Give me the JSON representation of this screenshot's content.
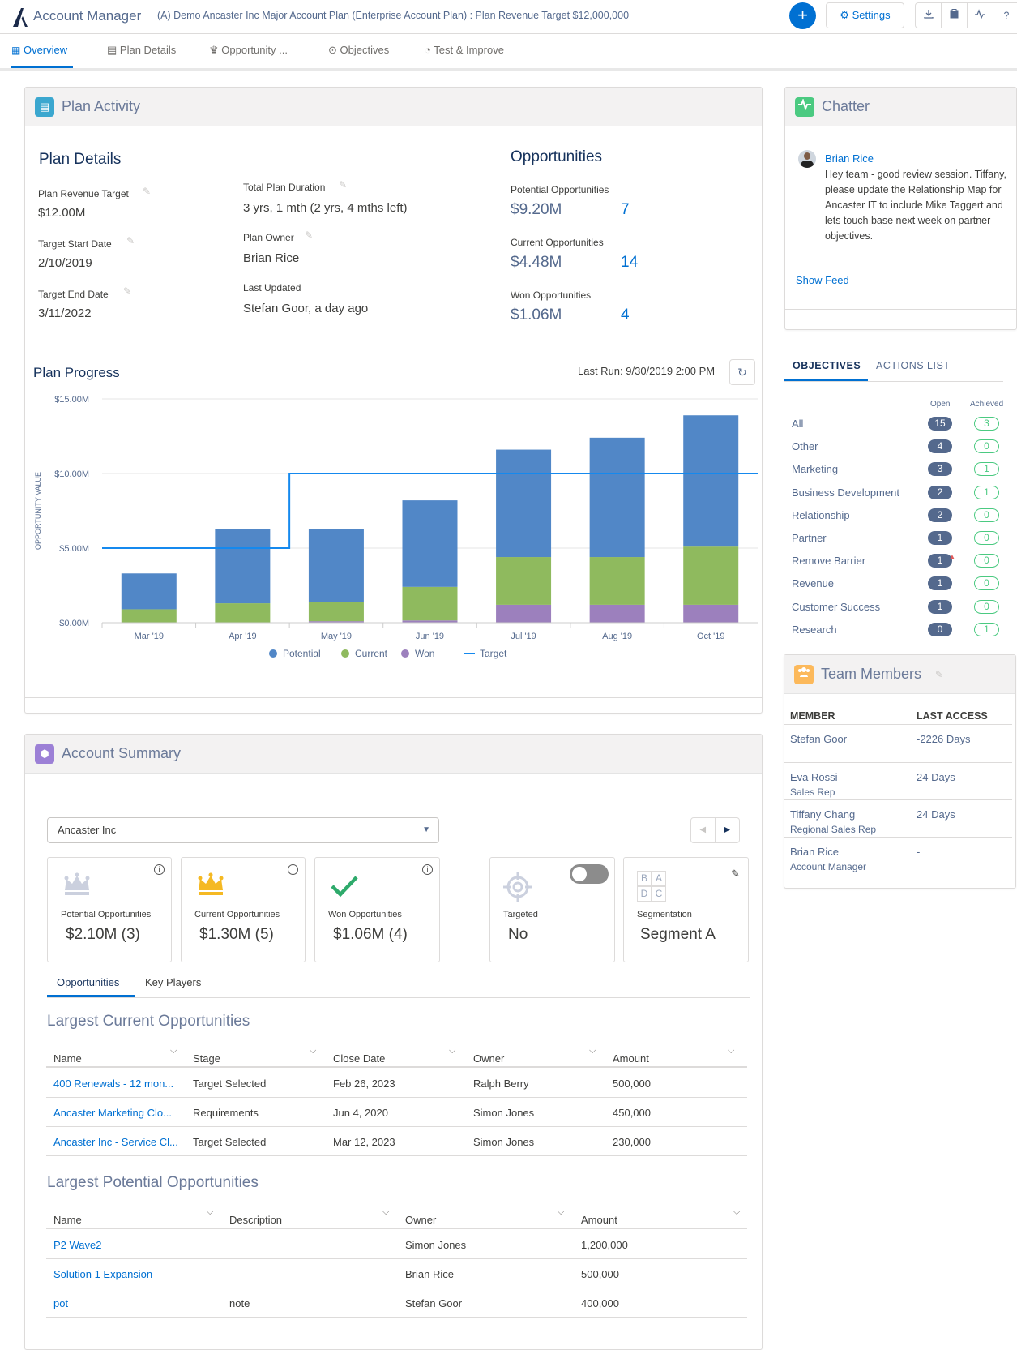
{
  "header": {
    "app_title": "Account Manager",
    "plan_title": "(A) Demo Ancaster Inc Major Account Plan (Enterprise Account Plan) : Plan Revenue Target $12,000,000",
    "plus_label": "+",
    "settings_label": "⚙ Settings",
    "icons": [
      "download-icon",
      "clipboard-icon",
      "activity-icon",
      "help-icon"
    ],
    "help_label": "?"
  },
  "tabs": [
    {
      "label": "Overview",
      "icon": "grid-icon"
    },
    {
      "label": "Plan Details",
      "icon": "clipboard-icon"
    },
    {
      "label": "Opportunity ...",
      "icon": "crown-icon"
    },
    {
      "label": "Objectives",
      "icon": "target-icon"
    },
    {
      "label": "Test & Improve",
      "icon": "chart-icon"
    }
  ],
  "plan_activity": {
    "title": "Plan Activity",
    "details_title": "Plan Details",
    "revenue_target_label": "Plan Revenue Target",
    "revenue_target_value": "$12.00M",
    "start_date_label": "Target Start Date",
    "start_date_value": "2/10/2019",
    "end_date_label": "Target End Date",
    "end_date_value": "3/11/2022",
    "duration_label": "Total Plan Duration",
    "duration_value": "3 yrs, 1 mth (2 yrs, 4 mths left)",
    "owner_label": "Plan Owner",
    "owner_value": "Brian Rice",
    "updated_label": "Last Updated",
    "updated_value": "Stefan Goor, a day ago",
    "opps_title": "Opportunities",
    "potential_label": "Potential Opportunities",
    "potential_value": "$9.20M",
    "potential_count": "7",
    "current_label": "Current Opportunities",
    "current_value": "$4.48M",
    "current_count": "14",
    "won_label": "Won Opportunities",
    "won_value": "$1.06M",
    "won_count": "4",
    "progress_title": "Plan Progress",
    "last_run": "Last Run: 9/30/2019 2:00 PM"
  },
  "chart_data": {
    "type": "bar",
    "stacked": true,
    "categories": [
      "Mar '19",
      "Apr '19",
      "May '19",
      "Jun '19",
      "Jul '19",
      "Aug '19",
      "Oct '19"
    ],
    "series": [
      {
        "name": "Won",
        "values": [
          0.0,
          0.0,
          0.1,
          0.15,
          1.2,
          1.2,
          1.2
        ],
        "color": "#9c80bd"
      },
      {
        "name": "Current",
        "values": [
          0.9,
          1.3,
          1.3,
          2.25,
          3.2,
          3.2,
          3.9
        ],
        "color": "#8fba5e"
      },
      {
        "name": "Potential",
        "values": [
          2.4,
          5.0,
          4.9,
          5.8,
          7.2,
          8.0,
          8.8
        ],
        "color": "#5187c7"
      }
    ],
    "target": {
      "name": "Target",
      "values": [
        5.0,
        5.0,
        10.0,
        10.0,
        10.0,
        10.0,
        10.0
      ],
      "color": "#1589ee",
      "step_between": [
        1,
        2
      ]
    },
    "ylabel": "OPPORTUNITY VALUE",
    "yticks": [
      "$0.00M",
      "$5.00M",
      "$10.00M",
      "$15.00M"
    ],
    "ylim": [
      0,
      15
    ],
    "legend": [
      "Potential",
      "Current",
      "Won",
      "Target"
    ],
    "legend_position": "bottom"
  },
  "chatter": {
    "title": "Chatter",
    "author": "Brian Rice",
    "message": "Hey team - good review session. Tiffany, please update the Relationship Map for Ancaster IT to include Mike Taggert and lets touch base next week on partner objectives.",
    "show_feed": "Show Feed"
  },
  "objectives": {
    "tab_objectives": "OBJECTIVES",
    "tab_actions": "ACTIONS LIST",
    "col_open": "Open",
    "col_achieved": "Achieved",
    "rows": [
      {
        "name": "All",
        "open": "15",
        "achieved": "3"
      },
      {
        "name": "Other",
        "open": "4",
        "achieved": "0"
      },
      {
        "name": "Marketing",
        "open": "3",
        "achieved": "1"
      },
      {
        "name": "Business Development",
        "open": "2",
        "achieved": "1"
      },
      {
        "name": "Relationship",
        "open": "2",
        "achieved": "0"
      },
      {
        "name": "Partner",
        "open": "1",
        "achieved": "0"
      },
      {
        "name": "Remove Barrier",
        "open": "1",
        "achieved": "0"
      },
      {
        "name": "Revenue",
        "open": "1",
        "achieved": "0"
      },
      {
        "name": "Customer Success",
        "open": "1",
        "achieved": "0"
      },
      {
        "name": "Research",
        "open": "0",
        "achieved": "1"
      }
    ]
  },
  "team": {
    "title": "Team Members",
    "col_member": "MEMBER",
    "col_access": "LAST ACCESS",
    "rows": [
      {
        "name": "Stefan Goor",
        "role": "",
        "access": "-2226 Days"
      },
      {
        "name": "Eva Rossi",
        "role": "Sales Rep",
        "access": "24 Days"
      },
      {
        "name": "Tiffany Chang",
        "role": "Regional Sales Rep",
        "access": "24 Days"
      },
      {
        "name": "Brian Rice",
        "role": "Account Manager",
        "access": "-"
      }
    ]
  },
  "account_summary": {
    "title": "Account Summary",
    "account_select": "Ancaster Inc",
    "cards": {
      "potential_label": "Potential Opportunities",
      "potential_value": "$2.10M (3)",
      "current_label": "Current Opportunities",
      "current_value": "$1.30M (5)",
      "won_label": "Won Opportunities",
      "won_value": "$1.06M (4)",
      "targeted_label": "Targeted",
      "targeted_value": "No",
      "segmentation_label": "Segmentation",
      "segmentation_value": "Segment A",
      "seg_letters": [
        "B",
        "A",
        "D",
        "C"
      ]
    },
    "tab_opps": "Opportunities",
    "tab_players": "Key Players",
    "current_title": "Largest Current Opportunities",
    "current_cols": [
      "Name",
      "Stage",
      "Close Date",
      "Owner",
      "Amount"
    ],
    "current_rows": [
      {
        "name": "400 Renewals - 12 mon...",
        "stage": "Target Selected",
        "close": "Feb 26, 2023",
        "owner": "Ralph Berry",
        "amount": "500,000"
      },
      {
        "name": "Ancaster Marketing Clo...",
        "stage": "Requirements",
        "close": "Jun 4, 2020",
        "owner": "Simon Jones",
        "amount": "450,000"
      },
      {
        "name": "Ancaster Inc - Service Cl...",
        "stage": "Target Selected",
        "close": "Mar 12, 2023",
        "owner": "Simon Jones",
        "amount": "230,000"
      }
    ],
    "potential_title": "Largest Potential Opportunities",
    "potential_cols": [
      "Name",
      "Description",
      "Owner",
      "Amount"
    ],
    "potential_rows": [
      {
        "name": "P2 Wave2",
        "desc": "",
        "owner": "Simon Jones",
        "amount": "1,200,000"
      },
      {
        "name": "Solution 1 Expansion",
        "desc": "",
        "owner": "Brian Rice",
        "amount": "500,000"
      },
      {
        "name": "pot",
        "desc": "note",
        "owner": "Stefan Goor",
        "amount": "400,000"
      }
    ]
  }
}
